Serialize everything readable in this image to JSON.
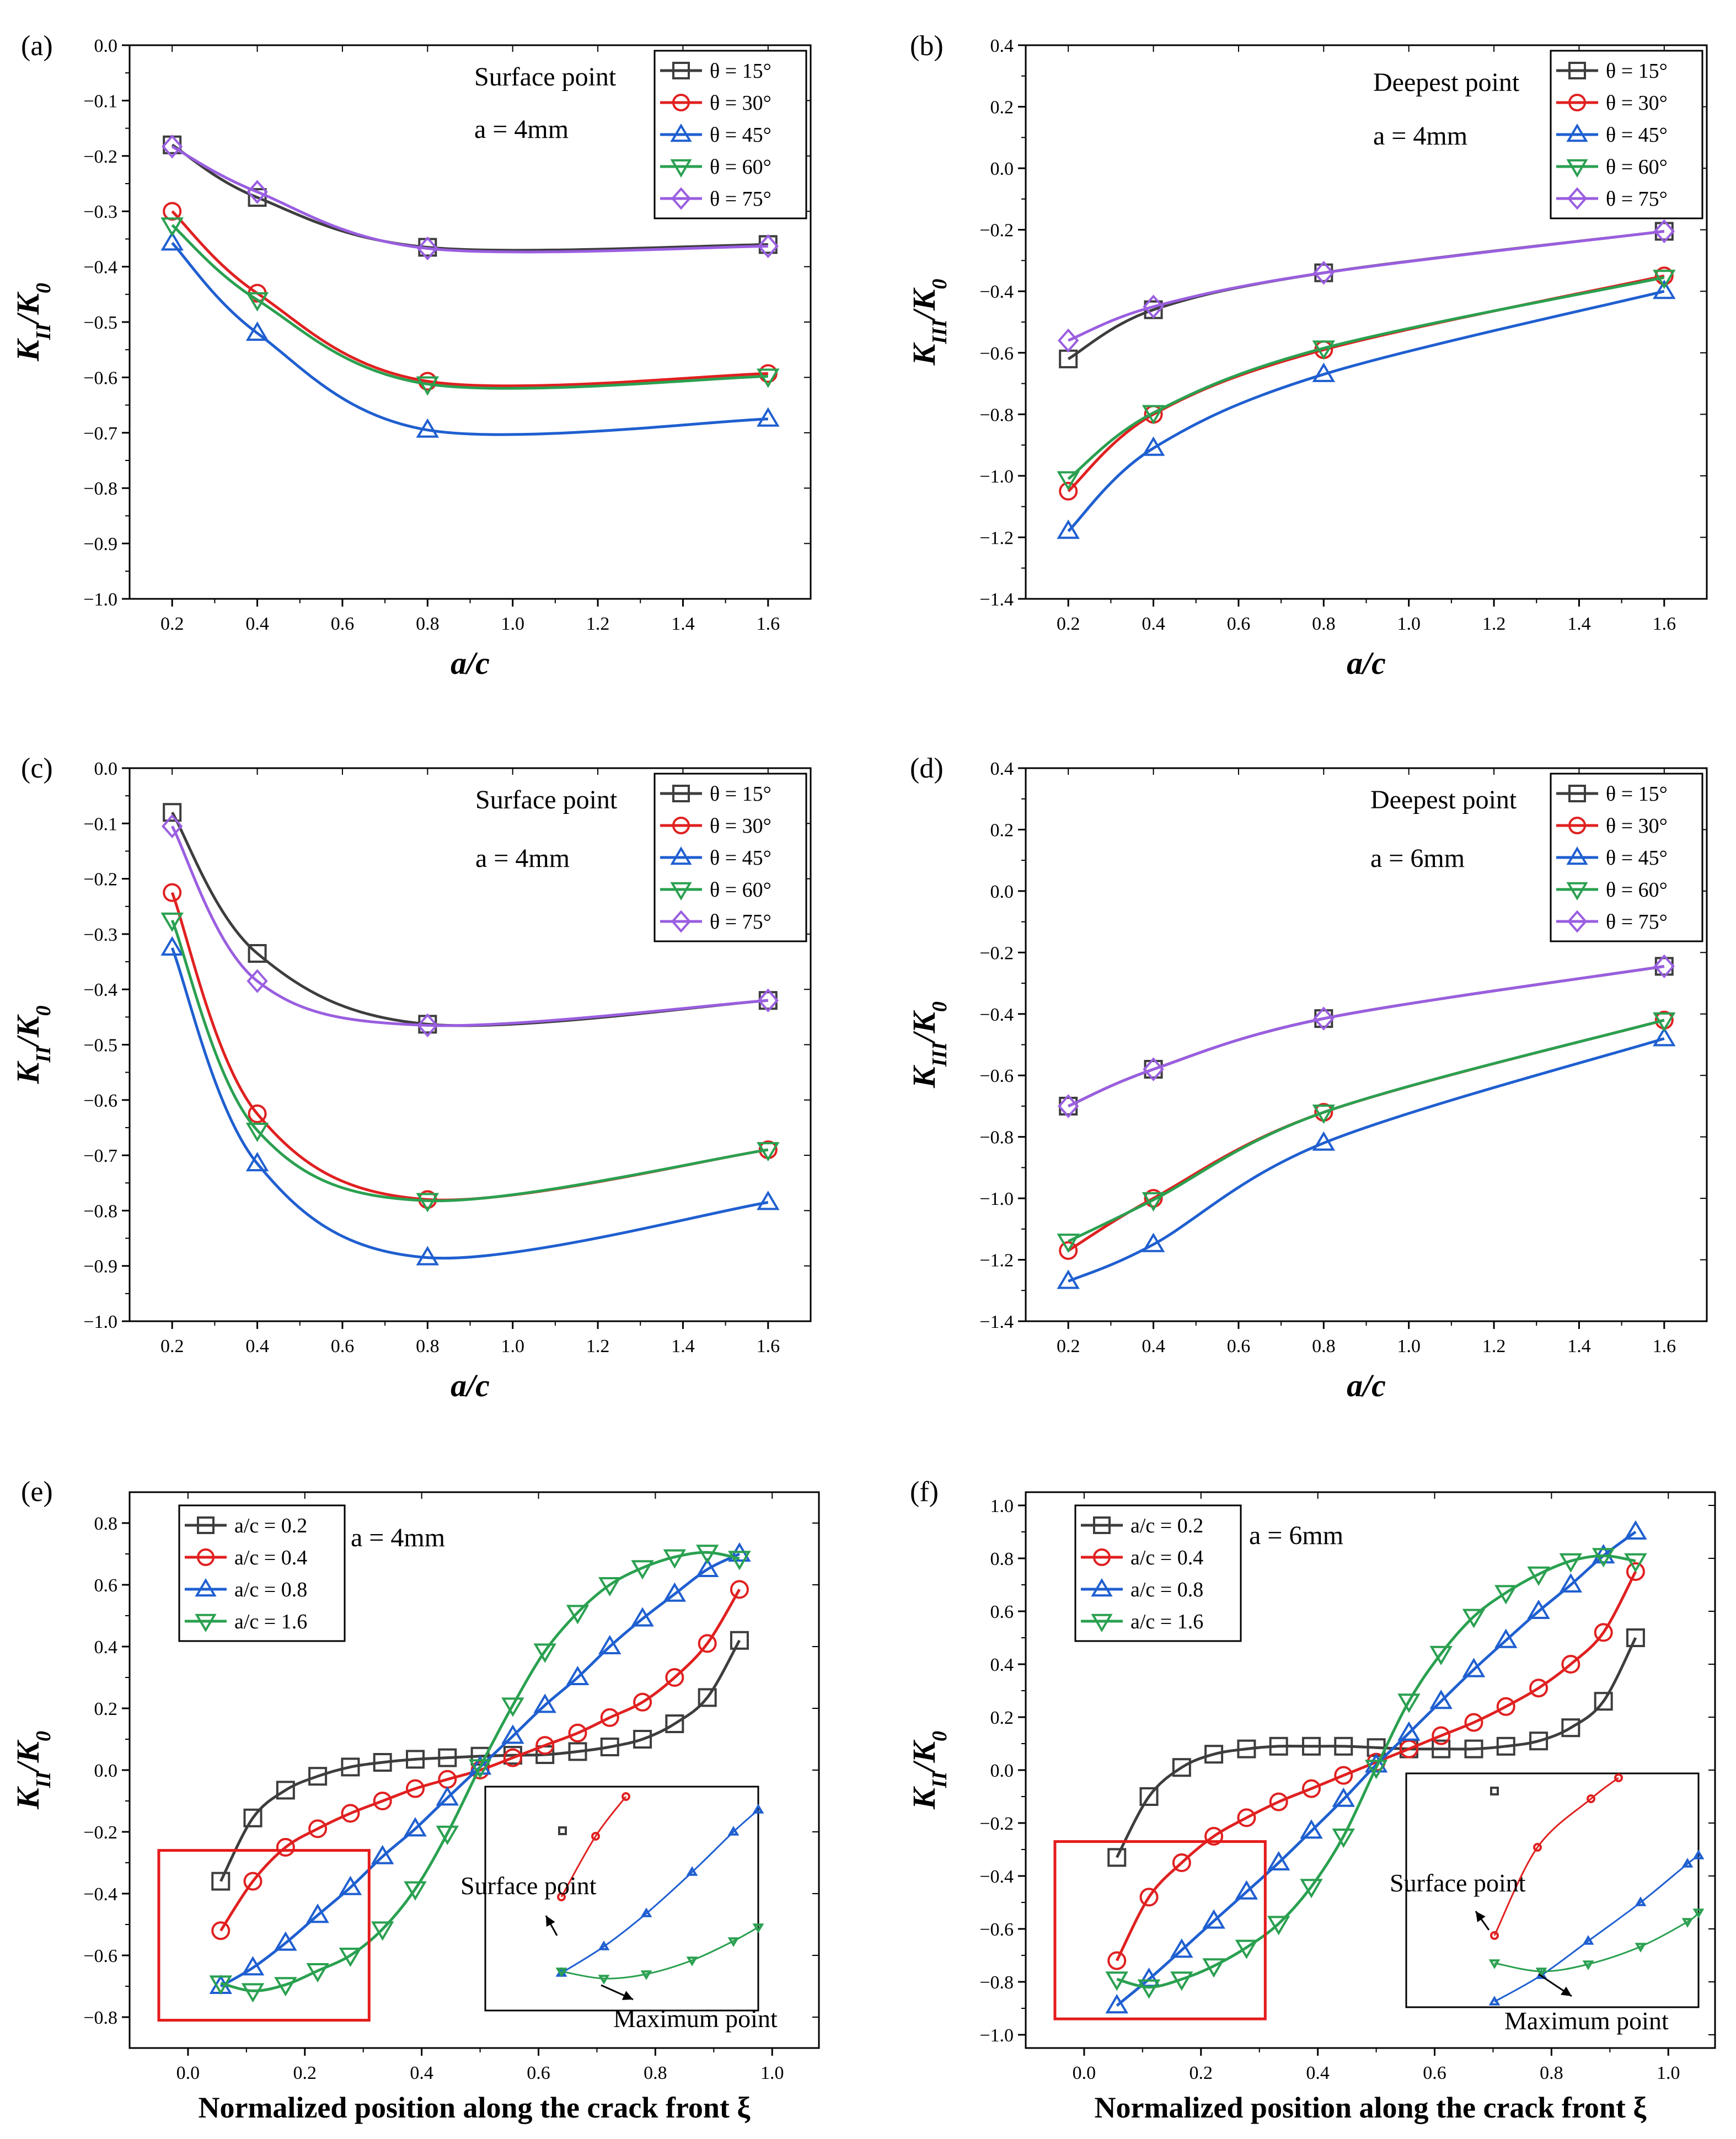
{
  "figure": {
    "colors": {
      "s15": "#3d3d3d",
      "s30": "#e02020",
      "s45": "#1f5fd0",
      "s60": "#2aa050",
      "s75": "#9a5ee0",
      "s02": "#3d3d3d",
      "s04": "#e02020",
      "s08": "#1f5fd0",
      "s16": "#2aa050",
      "box": "#e51b1b"
    }
  },
  "chart_data": [
    {
      "id": "a",
      "type": "line",
      "tag": "(a)",
      "xlabel": "a/c",
      "ylabel": {
        "main": "K",
        "sub": "II",
        "den": "/K",
        "den_sub": "0"
      },
      "xlim": [
        0.1,
        1.7
      ],
      "ylim": [
        -1.0,
        0.0
      ],
      "xticks": [
        0.2,
        0.4,
        0.6,
        0.8,
        1.0,
        1.2,
        1.4,
        1.6
      ],
      "xtick_labels": [
        "0.2",
        "0.4",
        "0.6",
        "0.8",
        "1.0",
        "1.2",
        "1.4",
        "1.6"
      ],
      "yticks": [
        -1.0,
        -0.9,
        -0.8,
        -0.7,
        -0.6,
        -0.5,
        -0.4,
        -0.3,
        -0.2,
        -0.1,
        0.0
      ],
      "ytick_labels": [
        "−1.0",
        "−0.9",
        "−0.8",
        "−0.7",
        "−0.6",
        "−0.5",
        "−0.4",
        "−0.3",
        "−0.2",
        "−0.1",
        "0.0"
      ],
      "annotations": [
        "Surface point",
        "a = 4mm"
      ],
      "legend_position": "top-right",
      "series": [
        {
          "name": "θ = 15°",
          "key": "s15",
          "marker": "square",
          "x": [
            0.2,
            0.4,
            0.8,
            1.6
          ],
          "y": [
            -0.18,
            -0.275,
            -0.365,
            -0.36
          ]
        },
        {
          "name": "θ = 30°",
          "key": "s30",
          "marker": "circle",
          "x": [
            0.2,
            0.4,
            0.8,
            1.6
          ],
          "y": [
            -0.3,
            -0.448,
            -0.607,
            -0.593
          ]
        },
        {
          "name": "θ = 45°",
          "key": "s45",
          "marker": "triangle-up",
          "x": [
            0.2,
            0.4,
            0.8,
            1.6
          ],
          "y": [
            -0.357,
            -0.52,
            -0.695,
            -0.675
          ]
        },
        {
          "name": "θ = 60°",
          "key": "s60",
          "marker": "triangle-down",
          "x": [
            0.2,
            0.4,
            0.8,
            1.6
          ],
          "y": [
            -0.325,
            -0.46,
            -0.612,
            -0.598
          ]
        },
        {
          "name": "θ = 75°",
          "key": "s75",
          "marker": "diamond",
          "x": [
            0.2,
            0.4,
            0.8,
            1.6
          ],
          "y": [
            -0.183,
            -0.265,
            -0.367,
            -0.363
          ]
        }
      ]
    },
    {
      "id": "b",
      "type": "line",
      "tag": "(b)",
      "xlabel": "a/c",
      "ylabel": {
        "main": "K",
        "sub": "III",
        "den": "/K",
        "den_sub": "0"
      },
      "xlim": [
        0.1,
        1.7
      ],
      "ylim": [
        -1.4,
        0.4
      ],
      "xticks": [
        0.2,
        0.4,
        0.6,
        0.8,
        1.0,
        1.2,
        1.4,
        1.6
      ],
      "xtick_labels": [
        "0.2",
        "0.4",
        "0.6",
        "0.8",
        "1.0",
        "1.2",
        "1.4",
        "1.6"
      ],
      "yticks": [
        -1.4,
        -1.2,
        -1.0,
        -0.8,
        -0.6,
        -0.4,
        -0.2,
        0.0,
        0.2,
        0.4
      ],
      "ytick_labels": [
        "−1.4",
        "−1.2",
        "−1.0",
        "−0.8",
        "−0.6",
        "−0.4",
        "−0.2",
        "0.0",
        "0.2",
        "0.4"
      ],
      "annotations": [
        "Deepest point",
        "a = 4mm"
      ],
      "legend_position": "top-right",
      "series": [
        {
          "name": "θ = 15°",
          "key": "s15",
          "marker": "square",
          "x": [
            0.2,
            0.4,
            0.8,
            1.6
          ],
          "y": [
            -0.62,
            -0.46,
            -0.34,
            -0.205
          ]
        },
        {
          "name": "θ = 30°",
          "key": "s30",
          "marker": "circle",
          "x": [
            0.2,
            0.4,
            0.8,
            1.6
          ],
          "y": [
            -1.05,
            -0.8,
            -0.59,
            -0.35
          ]
        },
        {
          "name": "θ = 45°",
          "key": "s45",
          "marker": "triangle-up",
          "x": [
            0.2,
            0.4,
            0.8,
            1.6
          ],
          "y": [
            -1.18,
            -0.91,
            -0.67,
            -0.4
          ]
        },
        {
          "name": "θ = 60°",
          "key": "s60",
          "marker": "triangle-down",
          "x": [
            0.2,
            0.4,
            0.8,
            1.6
          ],
          "y": [
            -1.01,
            -0.795,
            -0.585,
            -0.355
          ]
        },
        {
          "name": "θ = 75°",
          "key": "s75",
          "marker": "diamond",
          "x": [
            0.2,
            0.4,
            0.8,
            1.6
          ],
          "y": [
            -0.56,
            -0.45,
            -0.34,
            -0.205
          ]
        }
      ]
    },
    {
      "id": "c",
      "type": "line",
      "tag": "(c)",
      "xlabel": "a/c",
      "ylabel": {
        "main": "K",
        "sub": "II",
        "den": "/K",
        "den_sub": "0"
      },
      "xlim": [
        0.1,
        1.7
      ],
      "ylim": [
        -1.0,
        0.0
      ],
      "xticks": [
        0.2,
        0.4,
        0.6,
        0.8,
        1.0,
        1.2,
        1.4,
        1.6
      ],
      "xtick_labels": [
        "0.2",
        "0.4",
        "0.6",
        "0.8",
        "1.0",
        "1.2",
        "1.4",
        "1.6"
      ],
      "yticks": [
        -1.0,
        -0.9,
        -0.8,
        -0.7,
        -0.6,
        -0.5,
        -0.4,
        -0.3,
        -0.2,
        -0.1,
        0.0
      ],
      "ytick_labels": [
        "−1.0",
        "−0.9",
        "−0.8",
        "−0.7",
        "−0.6",
        "−0.5",
        "−0.4",
        "−0.3",
        "−0.2",
        "−0.1",
        "0.0"
      ],
      "annotations": [
        "Surface point",
        "a = 4mm"
      ],
      "legend_position": "top-right",
      "series": [
        {
          "name": "θ = 15°",
          "key": "s15",
          "marker": "square",
          "x": [
            0.2,
            0.4,
            0.8,
            1.6
          ],
          "y": [
            -0.08,
            -0.335,
            -0.463,
            -0.42
          ]
        },
        {
          "name": "θ = 30°",
          "key": "s30",
          "marker": "circle",
          "x": [
            0.2,
            0.4,
            0.8,
            1.6
          ],
          "y": [
            -0.225,
            -0.625,
            -0.78,
            -0.69
          ]
        },
        {
          "name": "θ = 45°",
          "key": "s45",
          "marker": "triangle-up",
          "x": [
            0.2,
            0.4,
            0.8,
            1.6
          ],
          "y": [
            -0.325,
            -0.715,
            -0.885,
            -0.785
          ]
        },
        {
          "name": "θ = 60°",
          "key": "s60",
          "marker": "triangle-down",
          "x": [
            0.2,
            0.4,
            0.8,
            1.6
          ],
          "y": [
            -0.275,
            -0.655,
            -0.782,
            -0.69
          ]
        },
        {
          "name": "θ = 75°",
          "key": "s75",
          "marker": "diamond",
          "x": [
            0.2,
            0.4,
            0.8,
            1.6
          ],
          "y": [
            -0.105,
            -0.385,
            -0.465,
            -0.42
          ]
        }
      ]
    },
    {
      "id": "d",
      "type": "line",
      "tag": "(d)",
      "xlabel": "a/c",
      "ylabel": {
        "main": "K",
        "sub": "III",
        "den": "/K",
        "den_sub": "0"
      },
      "xlim": [
        0.1,
        1.7
      ],
      "ylim": [
        -1.4,
        0.4
      ],
      "xticks": [
        0.2,
        0.4,
        0.6,
        0.8,
        1.0,
        1.2,
        1.4,
        1.6
      ],
      "xtick_labels": [
        "0.2",
        "0.4",
        "0.6",
        "0.8",
        "1.0",
        "1.2",
        "1.4",
        "1.6"
      ],
      "yticks": [
        -1.4,
        -1.2,
        -1.0,
        -0.8,
        -0.6,
        -0.4,
        -0.2,
        0.0,
        0.2,
        0.4
      ],
      "ytick_labels": [
        "−1.4",
        "−1.2",
        "−1.0",
        "−0.8",
        "−0.6",
        "−0.4",
        "−0.2",
        "0.0",
        "0.2",
        "0.4"
      ],
      "annotations": [
        "Deepest point",
        "a = 6mm"
      ],
      "legend_position": "top-right",
      "series": [
        {
          "name": "θ = 15°",
          "key": "s15",
          "marker": "square",
          "x": [
            0.2,
            0.4,
            0.8,
            1.6
          ],
          "y": [
            -0.7,
            -0.58,
            -0.415,
            -0.245
          ]
        },
        {
          "name": "θ = 30°",
          "key": "s30",
          "marker": "circle",
          "x": [
            0.2,
            0.4,
            0.8,
            1.6
          ],
          "y": [
            -1.17,
            -1.0,
            -0.72,
            -0.42
          ]
        },
        {
          "name": "θ = 45°",
          "key": "s45",
          "marker": "triangle-up",
          "x": [
            0.2,
            0.4,
            0.8,
            1.6
          ],
          "y": [
            -1.27,
            -1.15,
            -0.82,
            -0.48
          ]
        },
        {
          "name": "θ = 60°",
          "key": "s60",
          "marker": "triangle-down",
          "x": [
            0.2,
            0.4,
            0.8,
            1.6
          ],
          "y": [
            -1.14,
            -1.005,
            -0.72,
            -0.42
          ]
        },
        {
          "name": "θ = 75°",
          "key": "s75",
          "marker": "diamond",
          "x": [
            0.2,
            0.4,
            0.8,
            1.6
          ],
          "y": [
            -0.7,
            -0.58,
            -0.415,
            -0.245
          ]
        }
      ]
    },
    {
      "id": "e",
      "type": "line",
      "tag": "(e)",
      "xlabel": "Normalized position along the crack front ξ",
      "ylabel": {
        "main": "K",
        "sub": "II",
        "den": "/K",
        "den_sub": "0"
      },
      "xlim": [
        -0.1,
        1.08
      ],
      "ylim": [
        -0.9,
        0.9
      ],
      "xticks": [
        0.0,
        0.2,
        0.4,
        0.6,
        0.8,
        1.0
      ],
      "xtick_labels": [
        "0.0",
        "0.2",
        "0.4",
        "0.6",
        "0.8",
        "1.0"
      ],
      "yticks": [
        -0.8,
        -0.6,
        -0.4,
        -0.2,
        0.0,
        0.2,
        0.4,
        0.6,
        0.8
      ],
      "ytick_labels": [
        "−0.8",
        "−0.6",
        "−0.4",
        "−0.2",
        "0.0",
        "0.2",
        "0.4",
        "0.6",
        "0.8"
      ],
      "annotations": [
        "a = 4mm"
      ],
      "legend_position": "top-left",
      "highlight_box_data": {
        "x": [
          -0.05,
          0.31
        ],
        "y": [
          -0.81,
          -0.26
        ]
      },
      "inset_labels": [
        "Surface point",
        "Maximum point"
      ],
      "series": [
        {
          "name": "a/c = 0.2",
          "key": "s02",
          "marker": "square",
          "x": [
            0.056,
            0.111,
            0.167,
            0.222,
            0.278,
            0.333,
            0.389,
            0.444,
            0.5,
            0.556,
            0.611,
            0.667,
            0.722,
            0.778,
            0.833,
            0.889,
            0.944
          ],
          "y": [
            -0.36,
            -0.155,
            -0.065,
            -0.02,
            0.01,
            0.025,
            0.035,
            0.04,
            0.045,
            0.048,
            0.05,
            0.06,
            0.075,
            0.1,
            0.15,
            0.235,
            0.42
          ]
        },
        {
          "name": "a/c = 0.4",
          "key": "s04",
          "marker": "circle",
          "x": [
            0.056,
            0.111,
            0.167,
            0.222,
            0.278,
            0.333,
            0.389,
            0.444,
            0.5,
            0.556,
            0.611,
            0.667,
            0.722,
            0.778,
            0.833,
            0.889,
            0.944
          ],
          "y": [
            -0.52,
            -0.36,
            -0.25,
            -0.19,
            -0.14,
            -0.1,
            -0.06,
            -0.03,
            0.0,
            0.04,
            0.08,
            0.12,
            0.17,
            0.22,
            0.3,
            0.41,
            0.585
          ]
        },
        {
          "name": "a/c = 0.8",
          "key": "s08",
          "marker": "triangle-up",
          "x": [
            0.056,
            0.111,
            0.167,
            0.222,
            0.278,
            0.333,
            0.389,
            0.444,
            0.5,
            0.556,
            0.611,
            0.667,
            0.722,
            0.778,
            0.833,
            0.889,
            0.944
          ],
          "y": [
            -0.7,
            -0.64,
            -0.56,
            -0.47,
            -0.38,
            -0.28,
            -0.19,
            -0.09,
            0.01,
            0.11,
            0.21,
            0.3,
            0.4,
            0.49,
            0.57,
            0.65,
            0.7
          ]
        },
        {
          "name": "a/c = 1.6",
          "key": "s16",
          "marker": "triangle-down",
          "x": [
            0.056,
            0.111,
            0.167,
            0.222,
            0.278,
            0.333,
            0.389,
            0.444,
            0.5,
            0.556,
            0.611,
            0.667,
            0.722,
            0.778,
            0.833,
            0.889,
            0.944
          ],
          "y": [
            -0.69,
            -0.715,
            -0.695,
            -0.65,
            -0.6,
            -0.515,
            -0.385,
            -0.205,
            0.01,
            0.21,
            0.385,
            0.51,
            0.6,
            0.655,
            0.69,
            0.705,
            0.685
          ]
        }
      ]
    },
    {
      "id": "f",
      "type": "line",
      "tag": "(f)",
      "xlabel": "Normalized position along the crack front ξ",
      "ylabel": {
        "main": "K",
        "sub": "II",
        "den": "/K",
        "den_sub": "0"
      },
      "xlim": [
        -0.1,
        1.08
      ],
      "ylim": [
        -1.05,
        1.05
      ],
      "xticks": [
        0.0,
        0.2,
        0.4,
        0.6,
        0.8,
        1.0
      ],
      "xtick_labels": [
        "0.0",
        "0.2",
        "0.4",
        "0.6",
        "0.8",
        "1.0"
      ],
      "yticks": [
        -1.0,
        -0.8,
        -0.6,
        -0.4,
        -0.2,
        0.0,
        0.2,
        0.4,
        0.6,
        0.8,
        1.0
      ],
      "ytick_labels": [
        "−1.0",
        "−0.8",
        "−0.6",
        "−0.4",
        "−0.2",
        "0.0",
        "0.2",
        "0.4",
        "0.6",
        "0.8",
        "1.0"
      ],
      "annotations": [
        "a = 6mm"
      ],
      "legend_position": "top-left",
      "highlight_box_data": {
        "x": [
          -0.05,
          0.31
        ],
        "y": [
          -0.94,
          -0.27
        ]
      },
      "inset_labels": [
        "Surface point",
        "Maximum point"
      ],
      "series": [
        {
          "name": "a/c = 0.2",
          "key": "s02",
          "marker": "square",
          "x": [
            0.056,
            0.111,
            0.167,
            0.222,
            0.278,
            0.333,
            0.389,
            0.444,
            0.5,
            0.556,
            0.611,
            0.667,
            0.722,
            0.778,
            0.833,
            0.889,
            0.944
          ],
          "y": [
            -0.33,
            -0.1,
            0.01,
            0.06,
            0.08,
            0.09,
            0.09,
            0.09,
            0.085,
            0.08,
            0.08,
            0.08,
            0.09,
            0.11,
            0.16,
            0.26,
            0.5
          ]
        },
        {
          "name": "a/c = 0.4",
          "key": "s04",
          "marker": "circle",
          "x": [
            0.056,
            0.111,
            0.167,
            0.222,
            0.278,
            0.333,
            0.389,
            0.444,
            0.5,
            0.556,
            0.611,
            0.667,
            0.722,
            0.778,
            0.833,
            0.889,
            0.944
          ],
          "y": [
            -0.72,
            -0.48,
            -0.35,
            -0.25,
            -0.18,
            -0.12,
            -0.07,
            -0.02,
            0.03,
            0.08,
            0.13,
            0.18,
            0.24,
            0.31,
            0.4,
            0.52,
            0.75
          ]
        },
        {
          "name": "a/c = 0.8",
          "key": "s08",
          "marker": "triangle-up",
          "x": [
            0.056,
            0.111,
            0.167,
            0.222,
            0.278,
            0.333,
            0.389,
            0.444,
            0.5,
            0.556,
            0.611,
            0.667,
            0.722,
            0.778,
            0.833,
            0.889,
            0.944
          ],
          "y": [
            -0.89,
            -0.79,
            -0.68,
            -0.57,
            -0.46,
            -0.35,
            -0.23,
            -0.11,
            0.02,
            0.14,
            0.26,
            0.38,
            0.49,
            0.6,
            0.7,
            0.81,
            0.9
          ]
        },
        {
          "name": "a/c = 1.6",
          "key": "s16",
          "marker": "triangle-down",
          "x": [
            0.056,
            0.111,
            0.167,
            0.222,
            0.278,
            0.333,
            0.389,
            0.444,
            0.5,
            0.556,
            0.611,
            0.667,
            0.722,
            0.778,
            0.833,
            0.889,
            0.944
          ],
          "y": [
            -0.79,
            -0.82,
            -0.79,
            -0.74,
            -0.67,
            -0.58,
            -0.44,
            -0.25,
            0.01,
            0.26,
            0.44,
            0.58,
            0.67,
            0.74,
            0.79,
            0.81,
            0.79
          ]
        }
      ]
    }
  ]
}
